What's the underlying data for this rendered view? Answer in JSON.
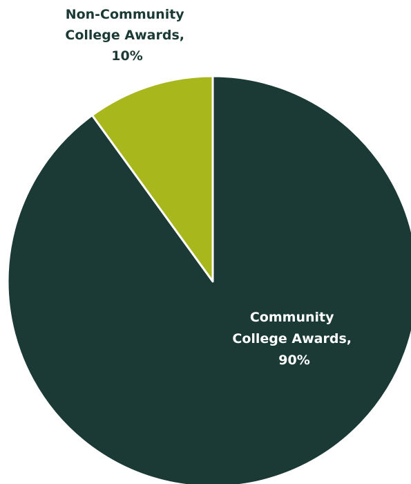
{
  "chart_data": {
    "type": "pie",
    "start_angle_deg": 0,
    "direction": "clockwise",
    "slices": [
      {
        "label_lines": [
          "Community",
          "College Awards,",
          "90%"
        ],
        "category": "Community College Awards",
        "value": 90,
        "color": "#1b3a35",
        "label_color": "#ffffff"
      },
      {
        "label_lines": [
          "Non-Community",
          "College Awards,",
          "10%"
        ],
        "category": "Non-Community College Awards",
        "value": 10,
        "color": "#a8b71c",
        "label_color": "#1b3a35"
      }
    ]
  }
}
